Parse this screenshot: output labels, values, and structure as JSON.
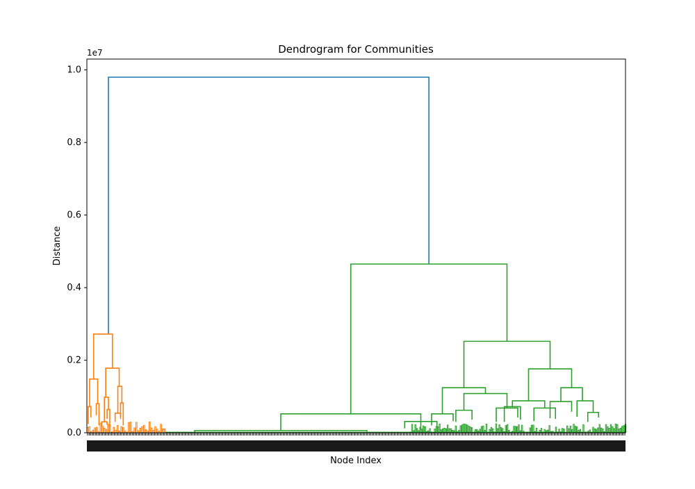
{
  "chart_data": {
    "type": "dendrogram",
    "title": "Dendrogram for Communities",
    "xlabel": "Node Index",
    "ylabel": "Distance",
    "y_offset_label": "1e7",
    "y_scale": 10000000,
    "ylim": [
      0,
      10300000
    ],
    "y_ticks": [
      0.0,
      0.2,
      0.4,
      0.6,
      0.8,
      1.0
    ],
    "leaf_count": 600,
    "grid": false,
    "colors": {
      "orange": "#ff7f0e",
      "green": "#2ca02c",
      "root": "#1f77b4"
    },
    "links": [
      {
        "x1": 8,
        "x2": 127,
        "h": 9800000,
        "y1": 2720000,
        "y2": 4650000,
        "color": "#1f77b4"
      },
      {
        "x1": 2.5,
        "x2": 9.5,
        "h": 2720000,
        "y1": 1480000,
        "y2": 1780000,
        "color": "#ff7f0e"
      },
      {
        "x1": 1,
        "x2": 4,
        "h": 1480000,
        "y1": 720000,
        "y2": 800000,
        "color": "#ff7f0e"
      },
      {
        "x1": 7,
        "x2": 12,
        "h": 1780000,
        "y1": 980000,
        "y2": 1280000,
        "color": "#ff7f0e"
      },
      {
        "x1": 0.5,
        "x2": 1.5,
        "h": 720000,
        "y1": 240000,
        "y2": 420000,
        "color": "#ff7f0e"
      },
      {
        "x1": 3.5,
        "x2": 4.5,
        "h": 800000,
        "y1": 480000,
        "y2": 200000,
        "color": "#ff7f0e"
      },
      {
        "x1": 6.5,
        "x2": 8,
        "h": 980000,
        "y1": 300000,
        "y2": 640000,
        "color": "#ff7f0e"
      },
      {
        "x1": 11.5,
        "x2": 13,
        "h": 1280000,
        "y1": 540000,
        "y2": 820000,
        "color": "#ff7f0e"
      },
      {
        "x1": 10.5,
        "x2": 12.5,
        "h": 540000,
        "y1": 300000,
        "y2": 440000,
        "color": "#ff7f0e"
      },
      {
        "x1": 12.5,
        "x2": 13.5,
        "h": 820000,
        "y1": 380000,
        "y2": 200000,
        "color": "#ff7f0e"
      },
      {
        "x1": 7.5,
        "x2": 8.5,
        "h": 640000,
        "y1": 380000,
        "y2": 200000,
        "color": "#ff7f0e"
      },
      {
        "x1": 5.5,
        "x2": 7.5,
        "h": 300000,
        "y1": 180000,
        "y2": 220000,
        "color": "#ff7f0e"
      },
      {
        "x1": 98,
        "x2": 156,
        "h": 4650000,
        "y1": 520000,
        "y2": 2520000,
        "color": "#2ca02c"
      },
      {
        "x1": 72,
        "x2": 124,
        "h": 520000,
        "y1": 60000,
        "y2": 80000,
        "color": "#2ca02c"
      },
      {
        "x1": 40,
        "x2": 104,
        "h": 60000,
        "y1": 0,
        "y2": 30000,
        "color": "#2ca02c"
      },
      {
        "x1": 118,
        "x2": 130,
        "h": 310000,
        "y1": 120000,
        "y2": 160000,
        "color": "#2ca02c"
      },
      {
        "x1": 140,
        "x2": 172,
        "h": 2520000,
        "y1": 1240000,
        "y2": 1760000,
        "color": "#2ca02c"
      },
      {
        "x1": 132,
        "x2": 148,
        "h": 1240000,
        "y1": 520000,
        "y2": 1080000,
        "color": "#2ca02c"
      },
      {
        "x1": 164,
        "x2": 180,
        "h": 1760000,
        "y1": 880000,
        "y2": 1240000,
        "color": "#2ca02c"
      },
      {
        "x1": 128,
        "x2": 136,
        "h": 520000,
        "y1": 200000,
        "y2": 320000,
        "color": "#2ca02c"
      },
      {
        "x1": 140,
        "x2": 156,
        "h": 1080000,
        "y1": 620000,
        "y2": 680000,
        "color": "#2ca02c"
      },
      {
        "x1": 137,
        "x2": 143,
        "h": 620000,
        "y1": 300000,
        "y2": 360000,
        "color": "#2ca02c"
      },
      {
        "x1": 152,
        "x2": 160,
        "h": 680000,
        "y1": 300000,
        "y2": 420000,
        "color": "#2ca02c"
      },
      {
        "x1": 158,
        "x2": 170,
        "h": 880000,
        "y1": 720000,
        "y2": 680000,
        "color": "#2ca02c"
      },
      {
        "x1": 176,
        "x2": 184,
        "h": 1240000,
        "y1": 860000,
        "y2": 880000,
        "color": "#2ca02c"
      },
      {
        "x1": 155,
        "x2": 161,
        "h": 720000,
        "y1": 300000,
        "y2": 360000,
        "color": "#2ca02c"
      },
      {
        "x1": 166,
        "x2": 174,
        "h": 680000,
        "y1": 320000,
        "y2": 380000,
        "color": "#2ca02c"
      },
      {
        "x1": 172,
        "x2": 180,
        "h": 860000,
        "y1": 400000,
        "y2": 580000,
        "color": "#2ca02c"
      },
      {
        "x1": 182,
        "x2": 188,
        "h": 880000,
        "y1": 440000,
        "y2": 560000,
        "color": "#2ca02c"
      },
      {
        "x1": 186,
        "x2": 190,
        "h": 560000,
        "y1": 300000,
        "y2": 420000,
        "color": "#2ca02c"
      }
    ]
  }
}
